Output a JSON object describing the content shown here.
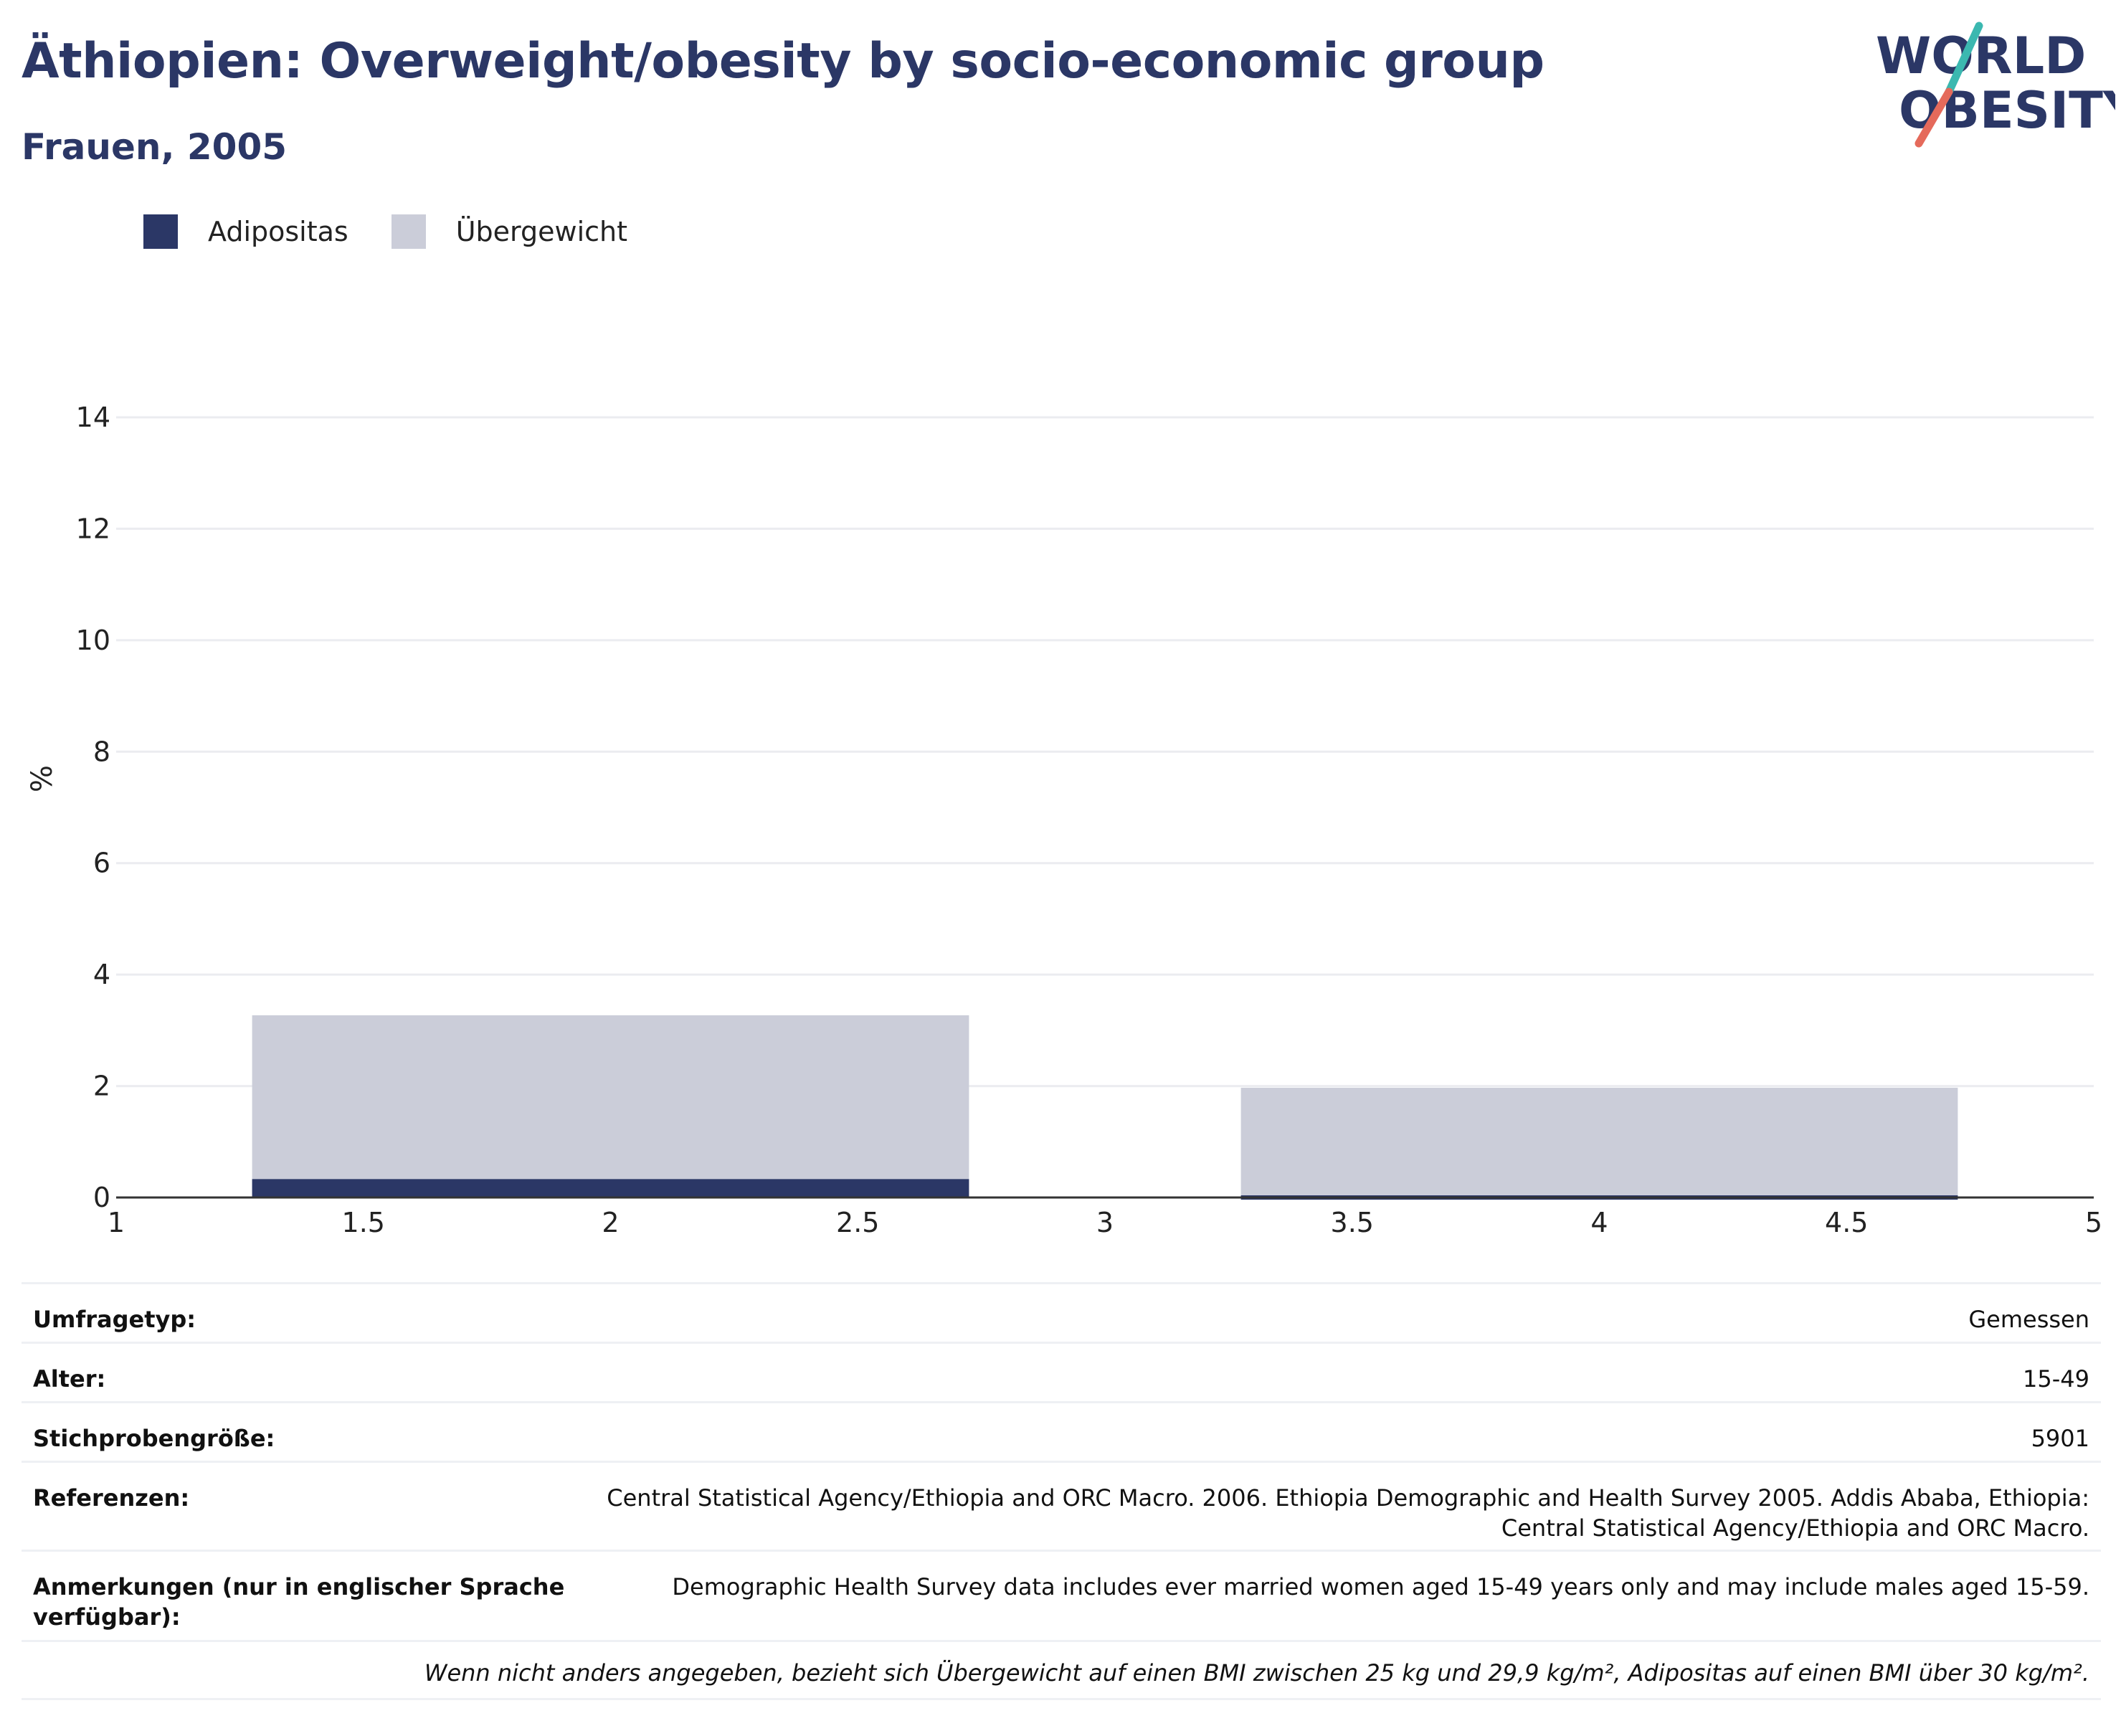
{
  "header": {
    "title": "Äthiopien: Overweight/obesity by socio-economic group",
    "subtitle": "Frauen, 2005"
  },
  "logo": {
    "line1": "WORLD",
    "line2": "OBESITY",
    "colors": {
      "text": "#2b3766",
      "slash_top": "#3bb8b0",
      "slash_bottom": "#e56a5b"
    }
  },
  "legend": [
    {
      "label": "Adipositas",
      "color": "#2b3766"
    },
    {
      "label": "Übergewicht",
      "color": "#cbcdd9"
    }
  ],
  "chart_data": {
    "type": "bar",
    "stacked": false,
    "overlay": true,
    "x": [
      2,
      4
    ],
    "bar_width": 1.45,
    "series": [
      {
        "name": "Übergewicht",
        "color": "#cbcdd9",
        "values": [
          3.27,
          1.97
        ]
      },
      {
        "name": "Adipositas",
        "color": "#2b3766",
        "values": [
          0.33,
          0.02
        ]
      }
    ],
    "xlim": [
      1,
      5
    ],
    "ylim": [
      0,
      14
    ],
    "xticks": [
      "1",
      "1.5",
      "2",
      "2.5",
      "3",
      "3.5",
      "4",
      "4.5",
      "5"
    ],
    "yticks": [
      "0",
      "2",
      "4",
      "6",
      "8",
      "10",
      "12",
      "14"
    ],
    "ylabel": "%",
    "xlabel": "",
    "grid": true,
    "legend_position": "top-left"
  },
  "info": {
    "survey_type": {
      "label": "Umfragetyp:",
      "value": "Gemessen"
    },
    "age": {
      "label": "Alter:",
      "value": "15-49"
    },
    "sample_size": {
      "label": "Stichprobengröße:",
      "value": "5901"
    },
    "references": {
      "label": "Referenzen:",
      "value_line1": "Central Statistical Agency/Ethiopia and ORC Macro. 2006. Ethiopia Demographic and Health Survey 2005. Addis Ababa, Ethiopia:",
      "value_line2": "Central Statistical Agency/Ethiopia and ORC Macro."
    },
    "notes": {
      "label_line1": "Anmerkungen (nur in englischer Sprache",
      "label_line2": "verfügbar):",
      "value": "Demographic Health Survey data includes ever married women aged 15-49 years only and may include males aged 15-59."
    },
    "footnote": "Wenn nicht anders angegeben, bezieht sich Übergewicht auf einen BMI zwischen 25 kg und 29,9 kg/m², Adipositas auf einen BMI über 30 kg/m²."
  }
}
